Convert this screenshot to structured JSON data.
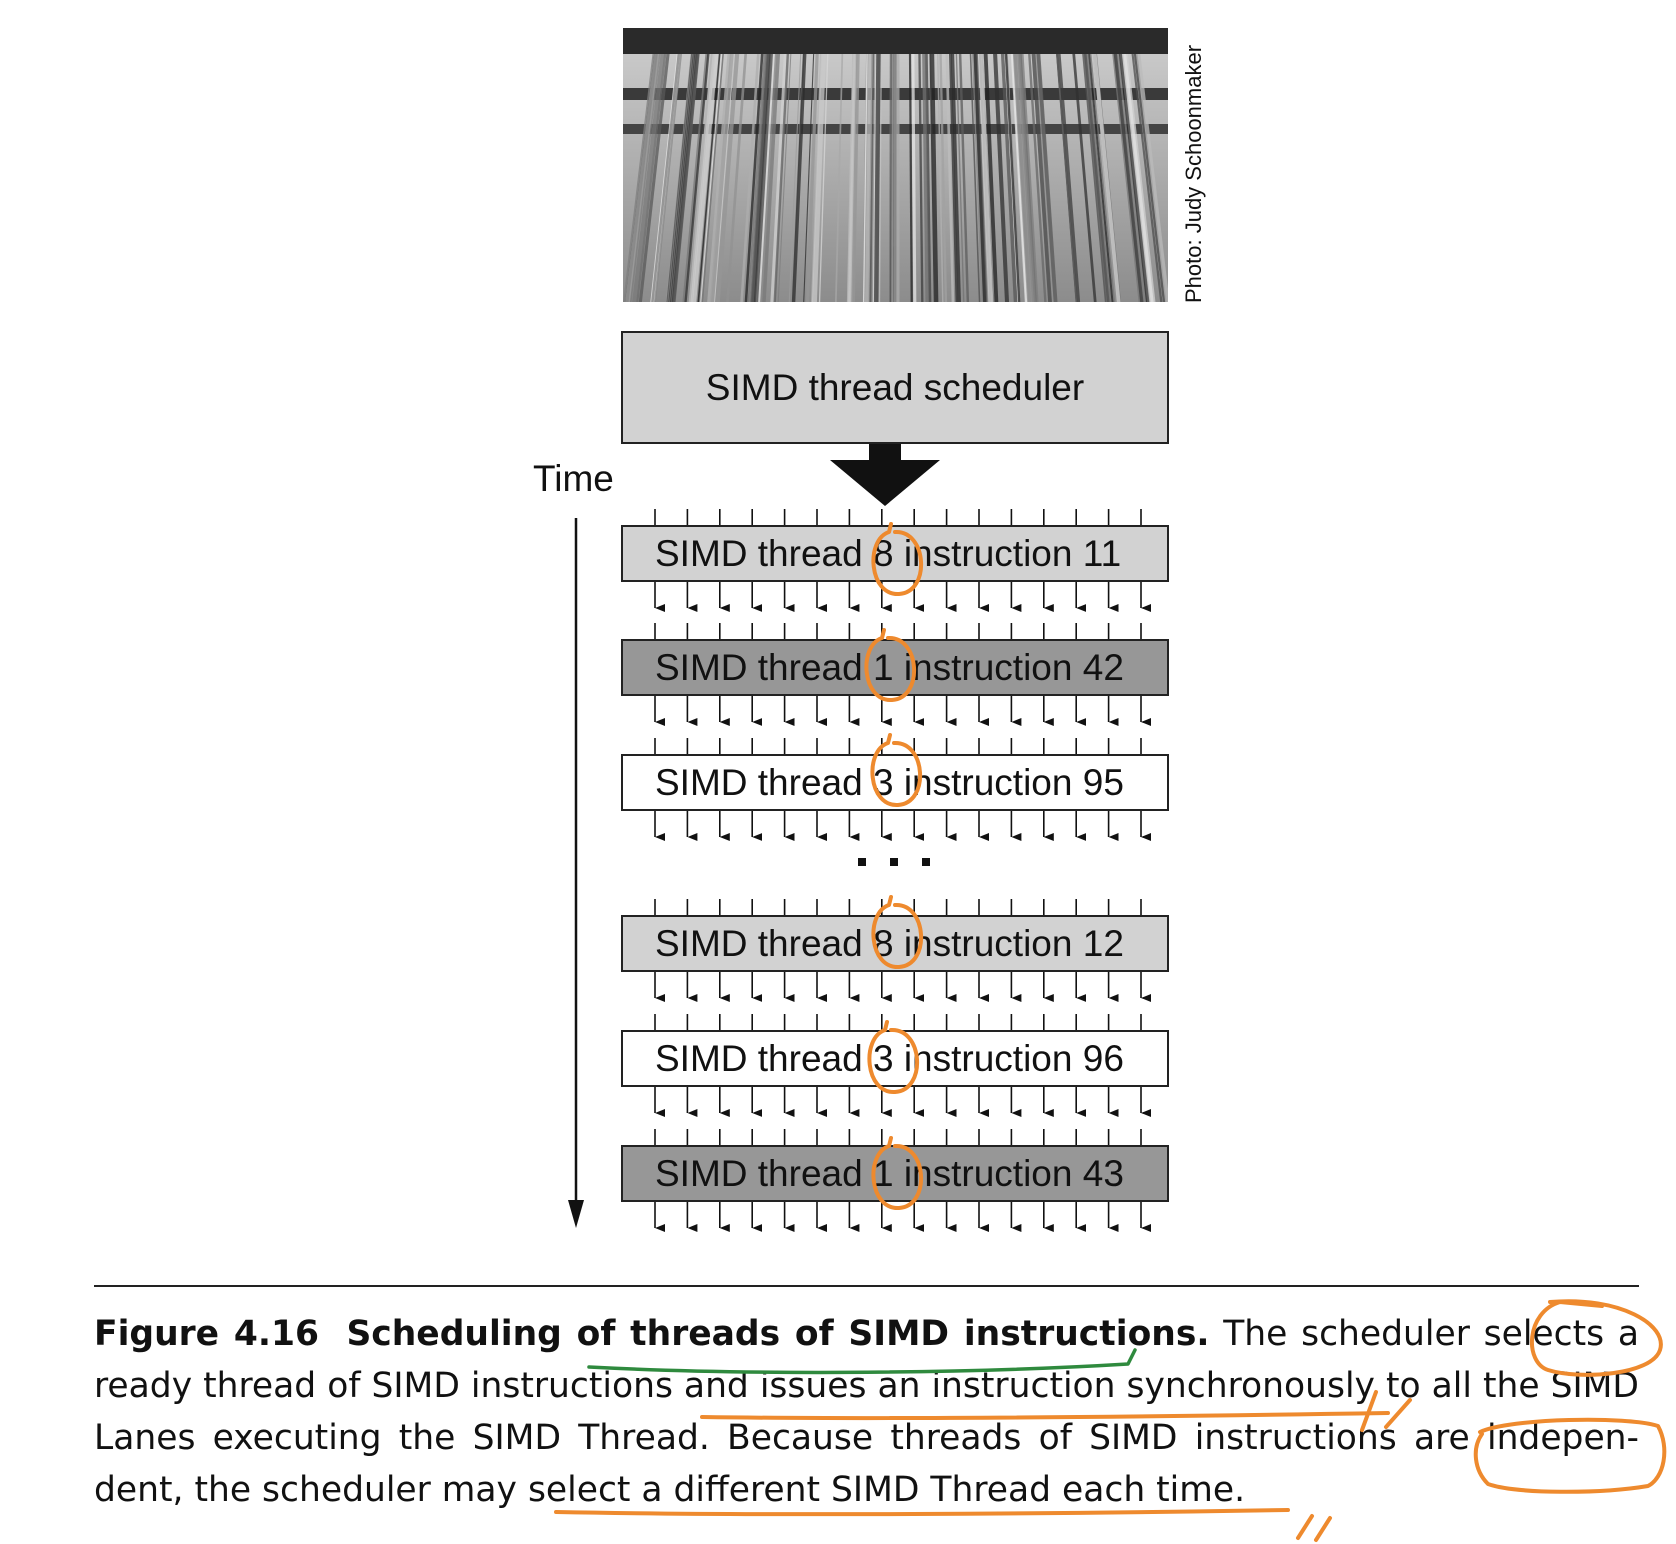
{
  "figure": {
    "photo_credit": "Photo: Judy Schoonmaker",
    "scheduler_label": "SIMD thread scheduler",
    "time_label": "Time",
    "ellipsis": ". . .",
    "rows": [
      {
        "label": "SIMD thread 8 instruction 11",
        "fill": "#d2d2d2"
      },
      {
        "label": "SIMD thread 1 instruction 42",
        "fill": "#979797"
      },
      {
        "label": "SIMD thread 3 instruction 95",
        "fill": "#ffffff"
      },
      {
        "label": "SIMD thread 8 instruction 12",
        "fill": "#d2d2d2"
      },
      {
        "label": "SIMD thread 3 instruction 96",
        "fill": "#ffffff"
      },
      {
        "label": "SIMD thread 1 instruction 43",
        "fill": "#979797"
      }
    ]
  },
  "caption": {
    "figure_number": "Figure 4.16",
    "title_plain": "Scheduling of ",
    "title_underlined": "threads of SIMD instructions.",
    "body_1": " The scheduler selects a ",
    "body_ready": "ready",
    "body_2": " thread of SIMD instructions and ",
    "body_issues": "issues an instruction synchronously to",
    "body_3": " all the SIMD Lanes executing the SIMD Thread. Because threads of SIMD instructions are ",
    "body_independent": "indepen-",
    "body_4": " dent, the scheduler may ",
    "body_select": "select a different SIMD Thread each time.",
    "body_end": ""
  },
  "annotation_colors": {
    "orange": "#ee8a2e",
    "green": "#2f8a3e"
  }
}
